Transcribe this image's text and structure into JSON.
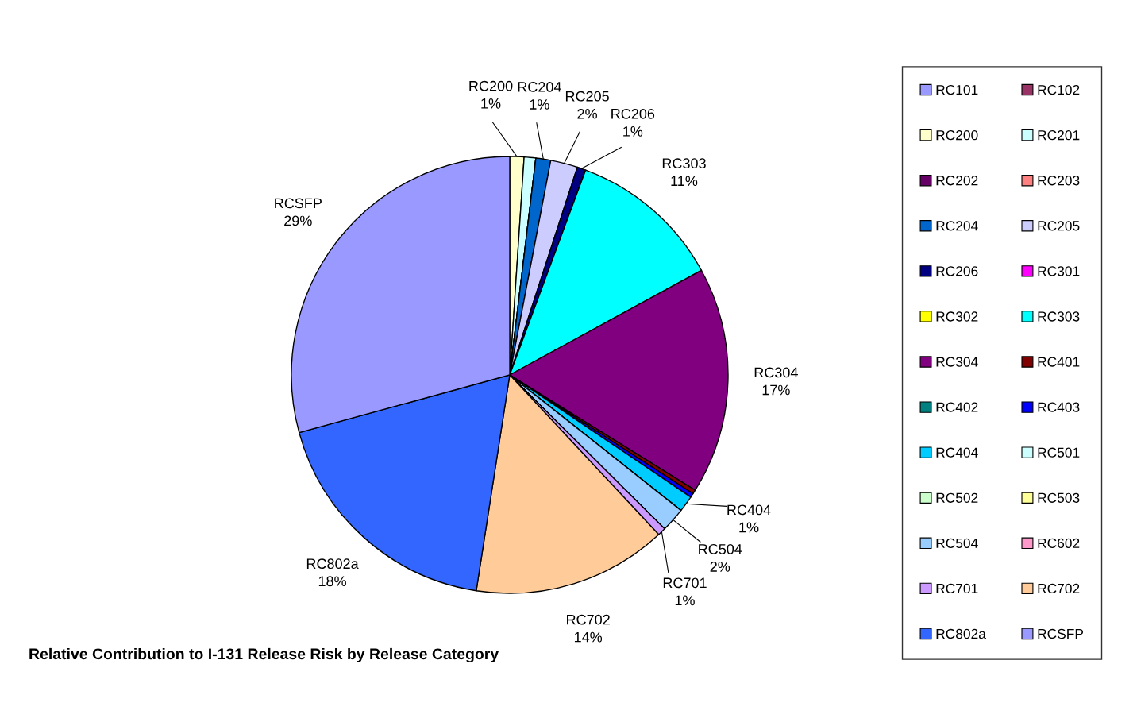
{
  "chart_data": {
    "type": "pie",
    "title": "Relative Contribution to I-131 Release Risk by Release Category",
    "categories": [
      "RC101",
      "RC102",
      "RC200",
      "RC201",
      "RC202",
      "RC203",
      "RC204",
      "RC205",
      "RC206",
      "RC301",
      "RC302",
      "RC303",
      "RC304",
      "RC401",
      "RC402",
      "RC403",
      "RC404",
      "RC501",
      "RC502",
      "RC503",
      "RC504",
      "RC602",
      "RC701",
      "RC702",
      "RC802a",
      "RCSFP"
    ],
    "values": [
      0,
      0,
      1.05,
      0.86,
      0,
      0,
      1.1,
      2.0,
      0.64,
      0,
      0,
      11.4,
      16.8,
      0.3,
      0,
      0.3,
      1.2,
      0,
      0,
      0,
      1.8,
      0,
      0.6,
      14.4,
      18.3,
      29.25
    ],
    "value_labels": [
      null,
      null,
      "1%",
      null,
      null,
      null,
      "1%",
      "2%",
      "1%",
      null,
      null,
      "11%",
      "17%",
      null,
      null,
      null,
      "1%",
      null,
      null,
      null,
      "2%",
      null,
      "1%",
      "14%",
      "18%",
      "29%"
    ],
    "colors": [
      "#9999ff",
      "#993366",
      "#ffffcc",
      "#ccffff",
      "#660066",
      "#ff8080",
      "#0066cc",
      "#ccccff",
      "#000080",
      "#ff00ff",
      "#ffff00",
      "#00ffff",
      "#800080",
      "#800000",
      "#008080",
      "#0000ff",
      "#00ccff",
      "#ccffff",
      "#ccffcc",
      "#ffff99",
      "#99ccff",
      "#ff99cc",
      "#cc99ff",
      "#ffcc99",
      "#3366ff",
      "#9999ff"
    ],
    "legend": "right"
  }
}
